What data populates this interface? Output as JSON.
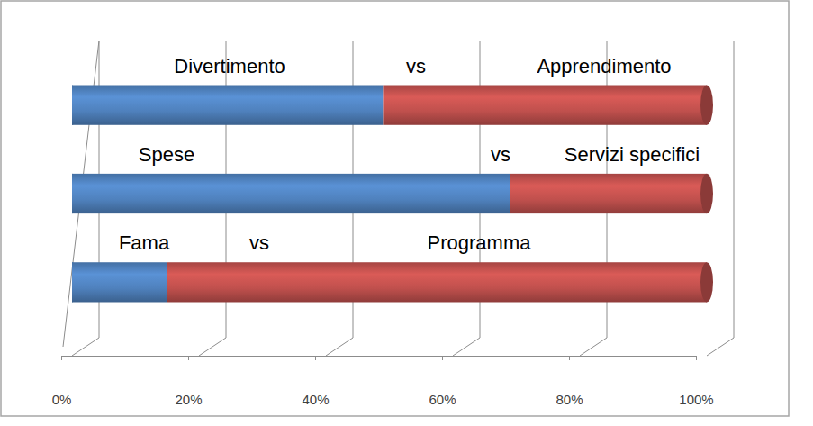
{
  "chart_data": {
    "type": "bar",
    "orientation": "horizontal",
    "stacked": true,
    "categories": [
      null,
      null,
      null
    ],
    "series": [
      {
        "color": "#4f81bd",
        "values": [
          49,
          69,
          15
        ]
      },
      {
        "color": "#c0504d",
        "values": [
          51,
          31,
          85
        ]
      }
    ],
    "annotations": [
      [
        "Divertimento",
        "vs",
        "Apprendimento"
      ],
      [
        "Spese",
        "vs",
        "Servizi specifici"
      ],
      [
        "Fama",
        "vs",
        "Programma"
      ]
    ],
    "xlim": [
      0,
      100
    ],
    "xticks": [
      {
        "value": 0,
        "label": "0%"
      },
      {
        "value": 20,
        "label": "20%"
      },
      {
        "value": 40,
        "label": "40%"
      },
      {
        "value": 60,
        "label": "60%"
      },
      {
        "value": 80,
        "label": "80%"
      },
      {
        "value": 100,
        "label": "100%"
      }
    ],
    "grid": true,
    "tick_labels": "x"
  }
}
